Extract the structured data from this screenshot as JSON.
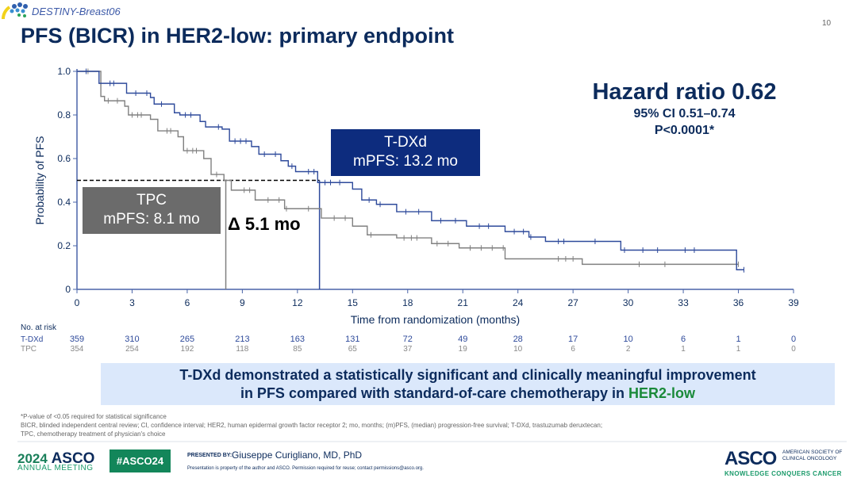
{
  "header": {
    "trial_name": "DESTINY-Breast06",
    "title": "PFS (BICR) in HER2-low: primary endpoint",
    "slide_number": "10"
  },
  "hazard": {
    "title": "Hazard ratio 0.62",
    "ci": "95% CI 0.51–0.74",
    "p": "P<0.0001*"
  },
  "annotations": {
    "tdxd_box": {
      "line1": "T-DXd",
      "line2": "mPFS: 13.2 mo"
    },
    "tpc_box": {
      "line1": "TPC",
      "line2": "mPFS: 8.1 mo"
    },
    "delta": "Δ 5.1 mo"
  },
  "chart_data": {
    "type": "line",
    "subtype": "kaplan-meier step",
    "xlabel": "Time from randomization (months)",
    "ylabel": "Probability of PFS",
    "xlim": [
      0,
      39
    ],
    "ylim": [
      0,
      1.0
    ],
    "xticks": [
      "0",
      "3",
      "6",
      "9",
      "12",
      "15",
      "18",
      "21",
      "24",
      "27",
      "30",
      "33",
      "36",
      "39"
    ],
    "yticks": [
      "0",
      "0.2",
      "0.4",
      "0.6",
      "0.8",
      "1.0"
    ],
    "reference_line": {
      "y": 0.5,
      "style": "dashed"
    },
    "medians": [
      {
        "series": "TPC",
        "x": 8.1
      },
      {
        "series": "T-DXd",
        "x": 13.2
      }
    ],
    "series": [
      {
        "name": "T-DXd",
        "color": "#2e4a9b",
        "points": [
          [
            0,
            1.0
          ],
          [
            1.2,
            0.945
          ],
          [
            2.7,
            0.9
          ],
          [
            4.0,
            0.88
          ],
          [
            4.2,
            0.85
          ],
          [
            5.3,
            0.81
          ],
          [
            5.6,
            0.8
          ],
          [
            6.7,
            0.77
          ],
          [
            7.0,
            0.745
          ],
          [
            7.9,
            0.735
          ],
          [
            8.3,
            0.68
          ],
          [
            9.5,
            0.655
          ],
          [
            9.9,
            0.62
          ],
          [
            11.1,
            0.59
          ],
          [
            11.5,
            0.565
          ],
          [
            11.9,
            0.54
          ],
          [
            13.1,
            0.49
          ],
          [
            15.0,
            0.46
          ],
          [
            15.5,
            0.41
          ],
          [
            16.3,
            0.39
          ],
          [
            17.4,
            0.356
          ],
          [
            19.3,
            0.315
          ],
          [
            21.2,
            0.29
          ],
          [
            23.3,
            0.265
          ],
          [
            24.6,
            0.24
          ],
          [
            25.5,
            0.22
          ],
          [
            29.6,
            0.18
          ],
          [
            35.9,
            0.09
          ],
          [
            36.3,
            0.09
          ]
        ],
        "censored": [
          0.5,
          1.8,
          2.0,
          3.2,
          3.8,
          4.6,
          5.9,
          6.2,
          7.7,
          8.6,
          8.9,
          9.2,
          10.2,
          10.8,
          11.7,
          12.6,
          12.9,
          13.5,
          13.8,
          14.3,
          15.9,
          16.5,
          17.9,
          18.6,
          19.8,
          20.6,
          21.9,
          22.4,
          23.8,
          24.3,
          24.7,
          26.2,
          26.5,
          28.2,
          29.8,
          30.8,
          31.6,
          33.1,
          33.6,
          36.3
        ],
        "at_risk": [
          359,
          310,
          265,
          213,
          163,
          131,
          72,
          49,
          28,
          17,
          10,
          6,
          1,
          0
        ]
      },
      {
        "name": "TPC",
        "color": "#808080",
        "points": [
          [
            0,
            1.0
          ],
          [
            1.3,
            0.885
          ],
          [
            1.5,
            0.865
          ],
          [
            2.6,
            0.84
          ],
          [
            2.8,
            0.8
          ],
          [
            4.0,
            0.78
          ],
          [
            4.4,
            0.727
          ],
          [
            5.5,
            0.7
          ],
          [
            5.8,
            0.636
          ],
          [
            6.9,
            0.6
          ],
          [
            7.3,
            0.527
          ],
          [
            8.0,
            0.5
          ],
          [
            8.4,
            0.455
          ],
          [
            9.7,
            0.41
          ],
          [
            11.3,
            0.37
          ],
          [
            13.3,
            0.327
          ],
          [
            15.0,
            0.29
          ],
          [
            15.8,
            0.25
          ],
          [
            17.4,
            0.236
          ],
          [
            19.3,
            0.21
          ],
          [
            20.8,
            0.19
          ],
          [
            23.3,
            0.14
          ],
          [
            27.5,
            0.115
          ],
          [
            36.0,
            0.115
          ]
        ],
        "censored": [
          0.6,
          1.7,
          2.2,
          3.0,
          3.3,
          3.5,
          4.9,
          5.1,
          6.0,
          6.3,
          6.5,
          7.6,
          9.1,
          9.4,
          10.4,
          11.0,
          11.4,
          12.6,
          14.0,
          14.6,
          16.0,
          17.8,
          18.2,
          18.5,
          19.6,
          20.2,
          21.4,
          22.0,
          22.6,
          23.2,
          26.2,
          26.6,
          27.0,
          30.6,
          32.0,
          36.0
        ],
        "at_risk": [
          354,
          254,
          192,
          118,
          85,
          65,
          37,
          19,
          10,
          6,
          2,
          1,
          1,
          0
        ]
      }
    ],
    "at_risk_title": "No. at risk"
  },
  "banner": {
    "line1": "T-DXd demonstrated a statistically significant and clinically meaningful improvement",
    "line2_prefix": "in PFS compared with standard-of-care chemotherapy in ",
    "line2_highlight": "HER2-low"
  },
  "footnotes": [
    "*P-value of <0.05 required for statistical significance",
    "BICR, blinded independent central review; CI, confidence interval; HER2, human epidermal growth factor receptor 2; mo, months; (m)PFS, (median) progression-free survival; T-DXd, trastuzumab deruxtecan;",
    "TPC, chemotherapy treatment of physician's choice"
  ],
  "footer": {
    "year": "2024",
    "asco": "ASCO",
    "meeting": "ANNUAL MEETING",
    "hashtag": "#ASCO24",
    "presented_by": "PRESENTED BY:",
    "presenter": "Giuseppe Curigliano, MD, PhD",
    "property": "Presentation is property of the author and ASCO. Permission required for reuse; contact permissions@asco.org.",
    "logo": "ASCO",
    "society_line1": "AMERICAN SOCIETY OF",
    "society_line2": "CLINICAL ONCOLOGY",
    "tagline": "KNOWLEDGE CONQUERS CANCER"
  }
}
